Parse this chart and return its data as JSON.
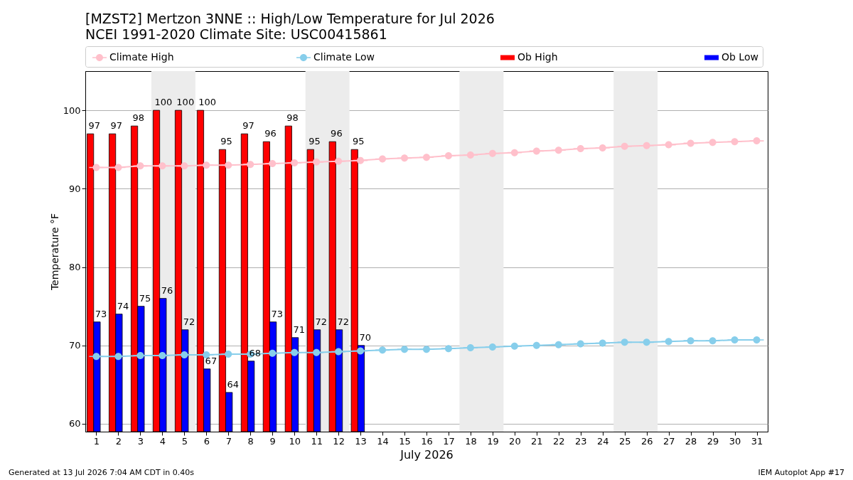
{
  "chart_data": {
    "type": "bar",
    "title": "[MZST2] Mertzon 3NNE :: High/Low Temperature for Jul 2026",
    "subtitle": "NCEI 1991-2020 Climate Site: USC00415861",
    "xlabel": "July 2026",
    "ylabel": "Temperature °F",
    "x": [
      1,
      2,
      3,
      4,
      5,
      6,
      7,
      8,
      9,
      10,
      11,
      12,
      13,
      14,
      15,
      16,
      17,
      18,
      19,
      20,
      21,
      22,
      23,
      24,
      25,
      26,
      27,
      28,
      29,
      30,
      31
    ],
    "xlim": [
      0.5,
      31.5
    ],
    "xticks": [
      1,
      2,
      3,
      4,
      5,
      6,
      7,
      8,
      9,
      10,
      11,
      12,
      13,
      14,
      15,
      16,
      17,
      18,
      19,
      20,
      21,
      22,
      23,
      24,
      25,
      26,
      27,
      28,
      29,
      30,
      31
    ],
    "ylim": [
      59,
      105
    ],
    "yticks": [
      60,
      70,
      80,
      90,
      100
    ],
    "series": [
      {
        "name": "Climate High",
        "type": "line",
        "color": "#ffc0cb",
        "values": [
          92.7,
          92.7,
          92.9,
          92.9,
          92.9,
          93.0,
          93.0,
          93.1,
          93.2,
          93.3,
          93.4,
          93.5,
          93.6,
          93.8,
          93.9,
          94.0,
          94.2,
          94.3,
          94.5,
          94.6,
          94.8,
          94.9,
          95.1,
          95.2,
          95.4,
          95.5,
          95.6,
          95.8,
          95.9,
          96.0,
          96.1
        ]
      },
      {
        "name": "Climate Low",
        "type": "line",
        "color": "#87ceeb",
        "values": [
          68.6,
          68.6,
          68.7,
          68.7,
          68.8,
          68.8,
          68.9,
          68.9,
          69.0,
          69.1,
          69.1,
          69.2,
          69.3,
          69.4,
          69.5,
          69.5,
          69.6,
          69.7,
          69.8,
          69.9,
          70.0,
          70.1,
          70.2,
          70.3,
          70.4,
          70.4,
          70.5,
          70.6,
          70.6,
          70.7,
          70.7
        ]
      },
      {
        "name": "Ob High",
        "color": "#ff0000",
        "values": [
          97,
          97,
          98,
          100,
          100,
          100,
          95,
          97,
          96,
          98,
          95,
          96,
          95,
          null,
          null,
          null,
          null,
          null,
          null,
          null,
          null,
          null,
          null,
          null,
          null,
          null,
          null,
          null,
          null,
          null,
          null
        ],
        "value_labels": [
          "97",
          "97",
          "98",
          "100",
          "100",
          "100",
          "95",
          "97",
          "96",
          "98",
          "95",
          "96",
          "95",
          null,
          null,
          null,
          null,
          null,
          null,
          null,
          null,
          null,
          null,
          null,
          null,
          null,
          null,
          null,
          null,
          null,
          null
        ]
      },
      {
        "name": "Ob Low",
        "color": "#0000ff",
        "values": [
          73,
          74,
          75,
          76,
          72,
          67,
          64,
          68,
          73,
          71,
          72,
          72,
          70,
          null,
          null,
          null,
          null,
          null,
          null,
          null,
          null,
          null,
          null,
          null,
          null,
          null,
          null,
          null,
          null,
          null,
          null
        ],
        "value_labels": [
          "73",
          "74",
          "75",
          "76",
          "72",
          "67",
          "64",
          "68",
          "73",
          "71",
          "72",
          "72",
          "70",
          null,
          null,
          null,
          null,
          null,
          null,
          null,
          null,
          null,
          null,
          null,
          null,
          null,
          null,
          null,
          null,
          null,
          null
        ]
      }
    ],
    "bands": [
      {
        "axis": "x",
        "from": 3.5,
        "to": 5.5,
        "color": "#ececec"
      },
      {
        "axis": "x",
        "from": 10.5,
        "to": 12.5,
        "color": "#ececec"
      },
      {
        "axis": "x",
        "from": 17.5,
        "to": 19.5,
        "color": "#ececec"
      },
      {
        "axis": "x",
        "from": 24.5,
        "to": 26.5,
        "color": "#ececec"
      }
    ],
    "annotations": [
      "Generated at 13 Jul 2026 7:04 AM CDT in 0.40s",
      "IEM Autoplot App #17"
    ],
    "grid": "y",
    "legend": "top",
    "marker": "circle",
    "line_style": "solid"
  }
}
